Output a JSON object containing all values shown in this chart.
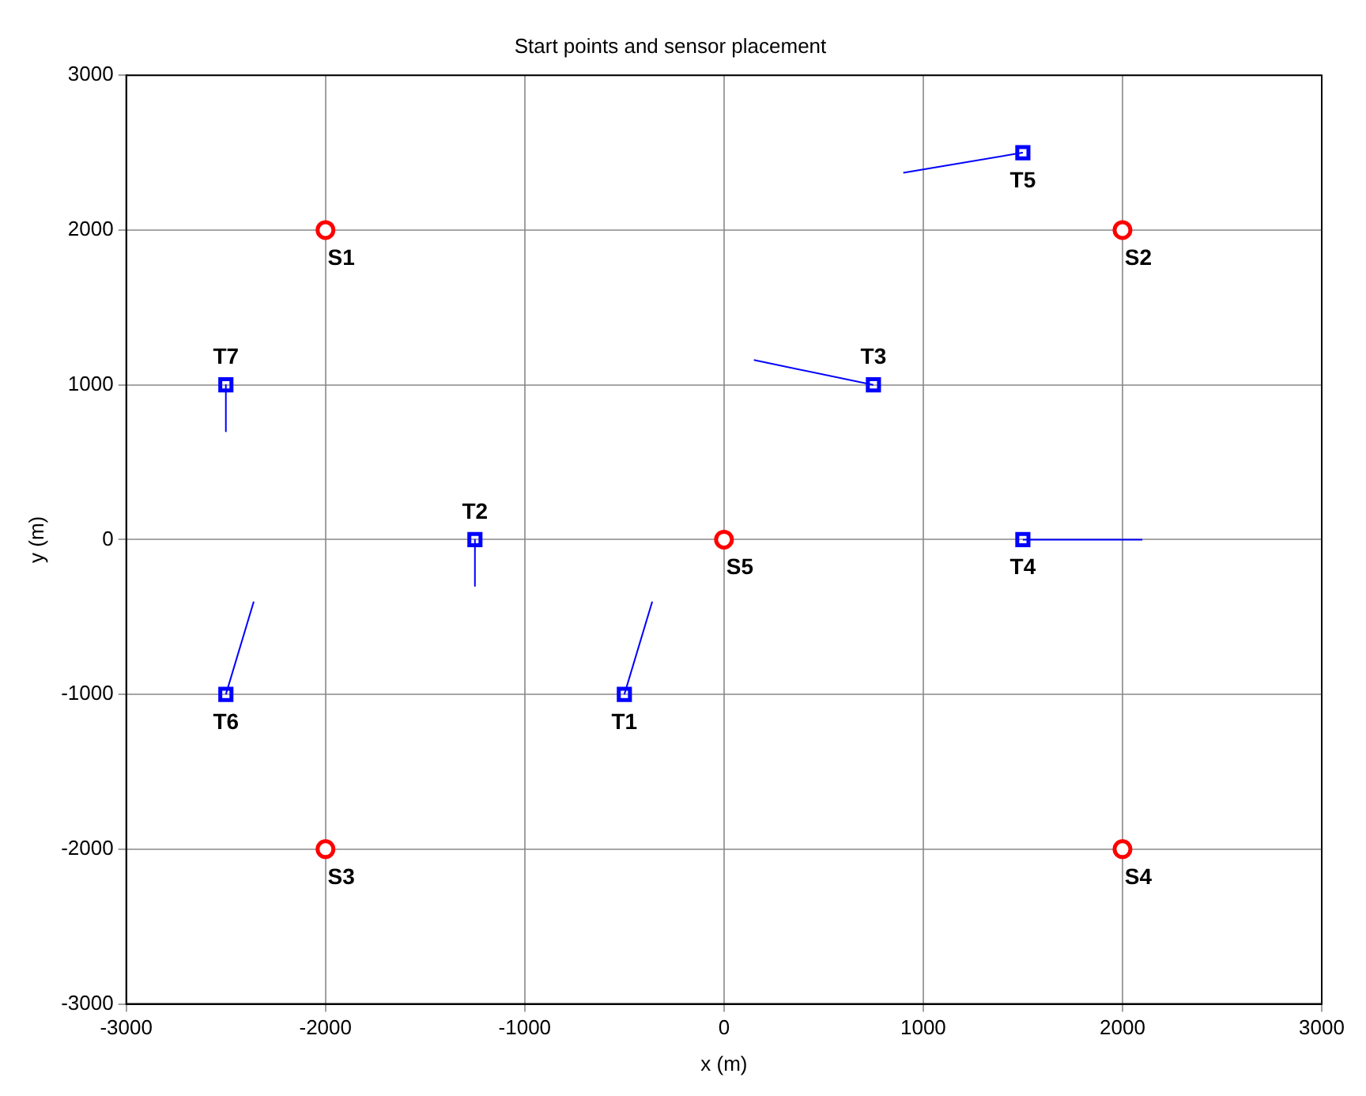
{
  "chart_data": {
    "type": "scatter",
    "title": "Start points and sensor placement",
    "xlabel": "x (m)",
    "ylabel": "y (m)",
    "xlim": [
      -3000,
      3000
    ],
    "ylim": [
      -3000,
      3000
    ],
    "xticks": [
      -3000,
      -2000,
      -1000,
      0,
      1000,
      2000,
      3000
    ],
    "yticks": [
      -3000,
      -2000,
      -1000,
      0,
      1000,
      2000,
      3000
    ],
    "grid": true,
    "series": [
      {
        "type": "scatter",
        "marker": "circle",
        "color": "#ff0000",
        "x": [
          -2000,
          2000,
          -2000,
          2000,
          0
        ],
        "values": [
          2000,
          2000,
          -2000,
          -2000,
          0
        ]
      },
      {
        "type": "scatter",
        "marker": "square",
        "color": "#0000ff",
        "x": [
          -500,
          -1250,
          750,
          1500,
          1500,
          -2500,
          -2500
        ],
        "values": [
          -1000,
          0,
          1000,
          0,
          2500,
          -1000,
          1000
        ]
      },
      {
        "type": "line",
        "marker": "none",
        "color": "#0000ff",
        "x": [
          -500,
          -360
        ],
        "values": [
          -1000,
          -400
        ]
      },
      {
        "type": "line",
        "marker": "none",
        "color": "#0000ff",
        "x": [
          -1250,
          -1250
        ],
        "values": [
          0,
          -300
        ]
      },
      {
        "type": "line",
        "marker": "none",
        "color": "#0000ff",
        "x": [
          750,
          150
        ],
        "values": [
          1000,
          1160
        ]
      },
      {
        "type": "line",
        "marker": "none",
        "color": "#0000ff",
        "x": [
          1500,
          2100
        ],
        "values": [
          0,
          0
        ]
      },
      {
        "type": "line",
        "marker": "none",
        "color": "#0000ff",
        "x": [
          1500,
          900
        ],
        "values": [
          2500,
          2370
        ]
      },
      {
        "type": "line",
        "marker": "none",
        "color": "#0000ff",
        "x": [
          -2500,
          -2360
        ],
        "values": [
          -1000,
          -400
        ]
      },
      {
        "type": "line",
        "marker": "none",
        "color": "#0000ff",
        "x": [
          -2500,
          -2500
        ],
        "values": [
          1000,
          700
        ]
      }
    ],
    "annotations": [
      {
        "text": "S1",
        "x": -2000,
        "y": 2000
      },
      {
        "text": "S2",
        "x": 2000,
        "y": 2000
      },
      {
        "text": "S3",
        "x": -2000,
        "y": -2000
      },
      {
        "text": "S4",
        "x": 2000,
        "y": -2000
      },
      {
        "text": "S5",
        "x": 0,
        "y": 0
      },
      {
        "text": "T1",
        "x": -500,
        "y": -1000
      },
      {
        "text": "T2",
        "x": -1250,
        "y": 0
      },
      {
        "text": "T3",
        "x": 750,
        "y": 1000
      },
      {
        "text": "T4",
        "x": 1500,
        "y": 0
      },
      {
        "text": "T5",
        "x": 1500,
        "y": 2500
      },
      {
        "text": "T6",
        "x": -2500,
        "y": -1000
      },
      {
        "text": "T7",
        "x": -2500,
        "y": 1000
      }
    ]
  }
}
